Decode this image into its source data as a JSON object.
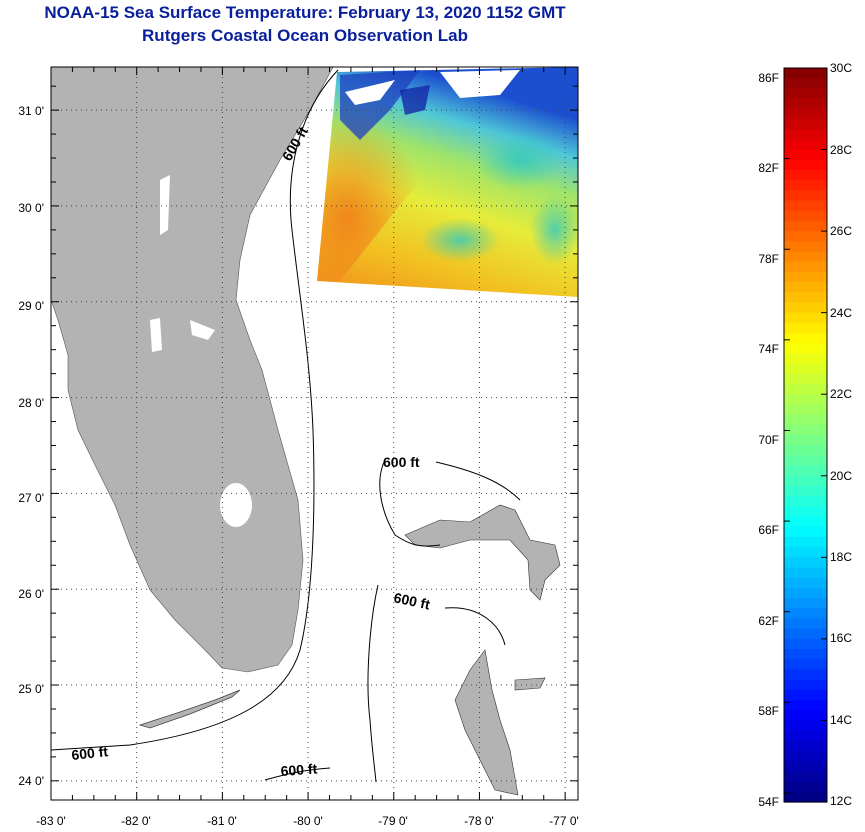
{
  "title": "NOAA-15 Sea Surface Temperature:  February 13, 2020 1152 GMT",
  "subtitle": "Rutgers Coastal Ocean Observation Lab",
  "map": {
    "lon_labels": [
      "-83 0'",
      "-82 0'",
      "-81 0'",
      "-80 0'",
      "-79 0'",
      "-78 0'",
      "-77 0'"
    ],
    "lat_labels": [
      "31 0'",
      "30 0'",
      "29 0'",
      "28 0'",
      "27 0'",
      "26 0'",
      "25 0'",
      "24 0'"
    ],
    "lon_range": [
      -83,
      -76.85
    ],
    "lat_range": [
      23.8,
      31.45
    ],
    "contour_labels": [
      "600 ft",
      "600 ft",
      "600 ft",
      "600 ft",
      "600 ft"
    ],
    "land_color": "#b3b3b3",
    "grid": "dotted"
  },
  "colorbar": {
    "fahrenheit_labels": [
      "86F",
      "82F",
      "78F",
      "74F",
      "70F",
      "66F",
      "62F",
      "58F",
      "54F"
    ],
    "celsius_labels": [
      "30C",
      "28C",
      "26C",
      "24C",
      "22C",
      "20C",
      "18C",
      "16C",
      "14C",
      "12C"
    ],
    "range_c": [
      12,
      30
    ],
    "colormap": "jet"
  }
}
